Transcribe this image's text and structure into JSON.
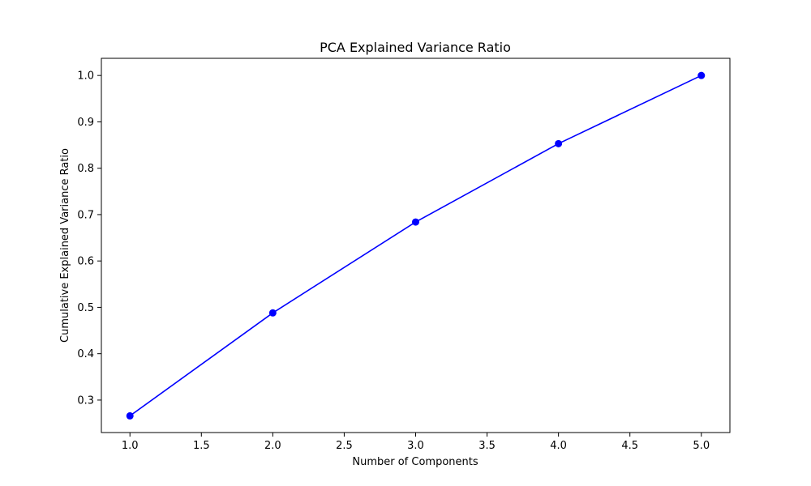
{
  "chart_data": {
    "type": "line",
    "title": "PCA Explained Variance Ratio",
    "xlabel": "Number of Components",
    "ylabel": "Cumulative Explained Variance Ratio",
    "xlim": [
      0.8,
      5.2
    ],
    "ylim": [
      0.23,
      1.037
    ],
    "x_ticks": [
      1.0,
      1.5,
      2.0,
      2.5,
      3.0,
      3.5,
      4.0,
      4.5,
      5.0
    ],
    "x_tick_labels": [
      "1.0",
      "1.5",
      "2.0",
      "2.5",
      "3.0",
      "3.5",
      "4.0",
      "4.5",
      "5.0"
    ],
    "y_ticks": [
      0.3,
      0.4,
      0.5,
      0.6,
      0.7,
      0.8,
      0.9,
      1.0
    ],
    "y_tick_labels": [
      "0.3",
      "0.4",
      "0.5",
      "0.6",
      "0.7",
      "0.8",
      "0.9",
      "1.0"
    ],
    "grid": false,
    "series": [
      {
        "x": [
          1,
          2,
          3,
          4,
          5
        ],
        "values": [
          0.266,
          0.488,
          0.684,
          0.853,
          1.0
        ],
        "color": "#0000ff",
        "marker": "circle"
      }
    ]
  }
}
